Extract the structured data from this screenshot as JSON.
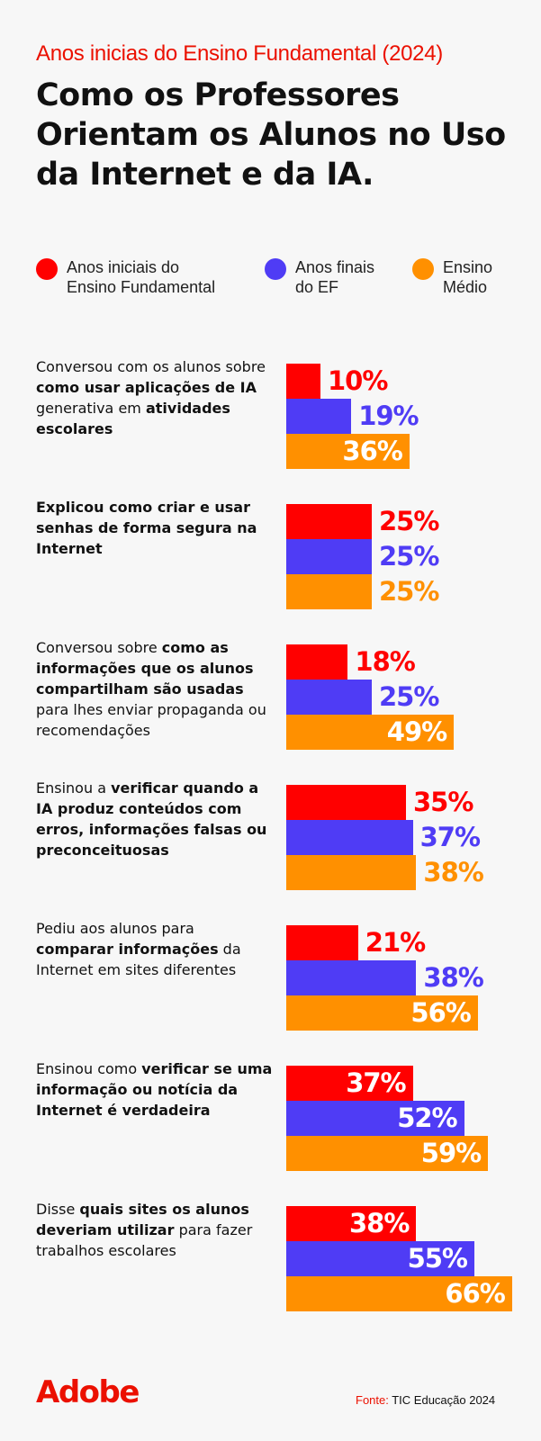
{
  "subtitle": "Anos inicias do Ensino Fundamental (2024)",
  "title": "Como os Professores Orientam os Alunos no Uso da Internet e da IA.",
  "chart_data": {
    "type": "bar",
    "orientation": "horizontal",
    "unit": "%",
    "colors": {
      "inside_label": "#ffffff"
    },
    "series": [
      {
        "name": "Anos iniciais do\nEnsino Fundamental",
        "color": "#ff0000",
        "values": [
          10,
          25,
          18,
          35,
          21,
          37,
          38
        ]
      },
      {
        "name": "Anos finais\ndo EF",
        "color": "#4f3cf5",
        "values": [
          19,
          25,
          25,
          37,
          38,
          52,
          55
        ]
      },
      {
        "name": "Ensino\nMédio",
        "color": "#ff9000",
        "values": [
          36,
          25,
          49,
          38,
          56,
          59,
          66
        ]
      }
    ],
    "labels": [
      [
        "10%",
        "19%",
        "36%"
      ],
      [
        "25%",
        "25%",
        "25%"
      ],
      [
        "18%",
        "25%",
        "49%"
      ],
      [
        "35%",
        "37%",
        "38%"
      ],
      [
        "21%",
        "38%",
        "56%"
      ],
      [
        "37%",
        "52%",
        "59%"
      ],
      [
        "38%",
        "55%",
        "66%"
      ]
    ],
    "label_inside": [
      [
        false,
        false,
        true
      ],
      [
        false,
        false,
        false
      ],
      [
        false,
        false,
        true
      ],
      [
        false,
        false,
        false
      ],
      [
        false,
        false,
        true
      ],
      [
        true,
        true,
        true
      ],
      [
        true,
        true,
        true
      ]
    ],
    "categories": [
      [
        {
          "t": "Conversou com os alunos sobre ",
          "b": false
        },
        {
          "t": "como usar aplicações de IA",
          "b": true
        },
        {
          "t": " generativa em ",
          "b": false
        },
        {
          "t": "atividades escolares",
          "b": true
        }
      ],
      [
        {
          "t": "Explicou como criar e usar senhas de forma segura na Internet",
          "b": true
        }
      ],
      [
        {
          "t": "Conversou sobre ",
          "b": false
        },
        {
          "t": "como as informações que os alunos compartilham são usadas",
          "b": true
        },
        {
          "t": " para lhes enviar propaganda ou recomendações",
          "b": false
        }
      ],
      [
        {
          "t": "Ensinou a ",
          "b": false
        },
        {
          "t": "verificar quando a IA produz conteúdos com erros, informações falsas ou preconceituosas",
          "b": true
        }
      ],
      [
        {
          "t": "Pediu aos alunos para ",
          "b": false
        },
        {
          "t": "comparar informações",
          "b": true
        },
        {
          "t": " da Internet em sites diferentes",
          "b": false
        }
      ],
      [
        {
          "t": "Ensinou como ",
          "b": false
        },
        {
          "t": "verificar se uma informação ou notícia da Internet é verdadeira",
          "b": true
        }
      ],
      [
        {
          "t": "Disse ",
          "b": false
        },
        {
          "t": "quais sites os alunos deveriam utilizar",
          "b": true
        },
        {
          "t": " para fazer trabalhos escolares",
          "b": false
        }
      ]
    ]
  },
  "footer": {
    "logo": "Adobe",
    "source_label": "Fonte:",
    "source_text": " TIC Educação 2024"
  }
}
